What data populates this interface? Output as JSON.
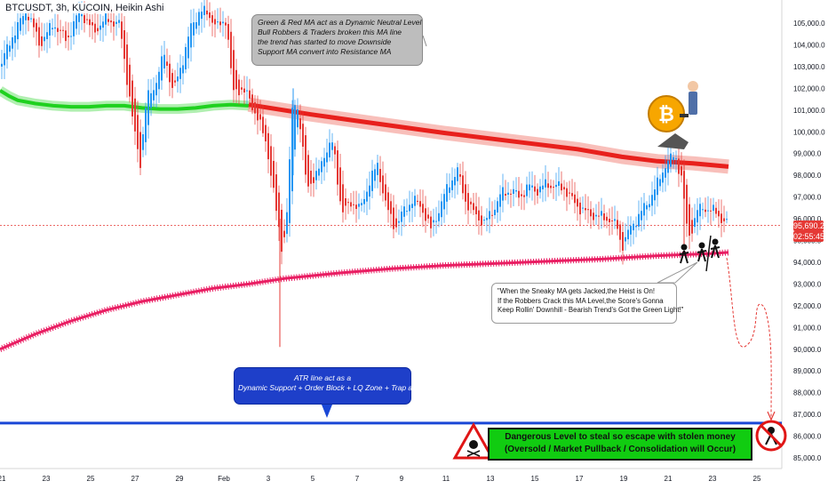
{
  "ticker": "BTCUSDT, 3h, KUCOIN, Heikin Ashi",
  "chart_data": {
    "type": "line",
    "ylim": [
      84300,
      106300
    ],
    "y_ticks": [
      105000,
      104000,
      103000,
      102000,
      101000,
      100000,
      99000,
      98000,
      97000,
      96000,
      95000,
      94000,
      93000,
      92000,
      91000,
      90000,
      89000,
      88000,
      87000,
      86000,
      85000
    ],
    "y_tick_labels": [
      "105,000.0",
      "104,000.0",
      "103,000.0",
      "102,000.0",
      "101,000.0",
      "100,000.0",
      "99,000.0",
      "98,000.0",
      "97,000.0",
      "96,000.0",
      "95,000.0",
      "94,000.0",
      "93,000.0",
      "92,000.0",
      "91,000.0",
      "90,000.0",
      "89,000.0",
      "88,000.0",
      "87,000.0",
      "86,000.0",
      "85,000.0"
    ],
    "x_tick_labels": [
      "21",
      "23",
      "25",
      "27",
      "29",
      "Feb",
      "3",
      "5",
      "7",
      "9",
      "11",
      "13",
      "15",
      "17",
      "19",
      "21",
      "23",
      "25"
    ],
    "current_price": 95690.2,
    "current_price_label": "95,690.2",
    "countdown": "02:55:45",
    "series": [
      {
        "values": [
          [
            0,
            101900
          ],
          [
            10,
            101650
          ],
          [
            20,
            101450
          ],
          [
            40,
            101300
          ],
          [
            60,
            101200
          ],
          [
            80,
            101150
          ],
          [
            100,
            101150
          ],
          [
            120,
            101200
          ],
          [
            140,
            101200
          ],
          [
            160,
            101100
          ],
          [
            180,
            101050
          ],
          [
            200,
            101050
          ],
          [
            220,
            101100
          ],
          [
            240,
            101200
          ],
          [
            260,
            101250
          ],
          [
            280,
            101200
          ]
        ]
      },
      {
        "values": [
          [
            280,
            101250
          ],
          [
            350,
            100800
          ],
          [
            420,
            100400
          ],
          [
            500,
            99950
          ],
          [
            580,
            99550
          ],
          [
            650,
            99200
          ],
          [
            700,
            98850
          ],
          [
            740,
            98650
          ],
          [
            780,
            98550
          ],
          [
            820,
            98400
          ]
        ]
      },
      {
        "values": [
          [
            0,
            90000
          ],
          [
            40,
            90700
          ],
          [
            80,
            91300
          ],
          [
            120,
            91800
          ],
          [
            160,
            92200
          ],
          [
            200,
            92500
          ],
          [
            240,
            92800
          ],
          [
            280,
            93000
          ],
          [
            320,
            93250
          ],
          [
            380,
            93500
          ],
          [
            440,
            93700
          ],
          [
            500,
            93850
          ],
          [
            560,
            93950
          ],
          [
            620,
            94050
          ],
          [
            680,
            94150
          ],
          [
            740,
            94300
          ],
          [
            800,
            94400
          ],
          [
            820,
            94450
          ]
        ]
      },
      {
        "values": [
          [
            0,
            86600
          ],
          [
            880,
            86600
          ]
        ]
      }
    ],
    "price_path": [
      [
        0,
        103000
      ],
      [
        15,
        104500
      ],
      [
        30,
        105600
      ],
      [
        45,
        104000
      ],
      [
        60,
        105000
      ],
      [
        75,
        104200
      ],
      [
        90,
        105600
      ],
      [
        105,
        104600
      ],
      [
        120,
        105200
      ],
      [
        135,
        104900
      ],
      [
        150,
        100300
      ],
      [
        158,
        98600
      ],
      [
        165,
        101500
      ],
      [
        175,
        102200
      ],
      [
        185,
        103600
      ],
      [
        195,
        101800
      ],
      [
        205,
        103200
      ],
      [
        215,
        104800
      ],
      [
        225,
        105600
      ],
      [
        235,
        105400
      ],
      [
        245,
        104800
      ],
      [
        255,
        105200
      ],
      [
        262,
        101800
      ],
      [
        270,
        102000
      ],
      [
        280,
        101600
      ],
      [
        290,
        100600
      ],
      [
        300,
        99500
      ],
      [
        310,
        96600
      ],
      [
        318,
        94500
      ],
      [
        323,
        96200
      ],
      [
        330,
        101800
      ],
      [
        336,
        100900
      ],
      [
        345,
        97600
      ],
      [
        355,
        97800
      ],
      [
        365,
        99000
      ],
      [
        375,
        99500
      ],
      [
        385,
        96200
      ],
      [
        395,
        96800
      ],
      [
        405,
        96400
      ],
      [
        415,
        97600
      ],
      [
        425,
        98500
      ],
      [
        435,
        96500
      ],
      [
        445,
        95600
      ],
      [
        455,
        96400
      ],
      [
        465,
        96900
      ],
      [
        475,
        96500
      ],
      [
        485,
        95500
      ],
      [
        495,
        96500
      ],
      [
        505,
        97600
      ],
      [
        515,
        98200
      ],
      [
        525,
        96700
      ],
      [
        535,
        96200
      ],
      [
        545,
        95800
      ],
      [
        555,
        96400
      ],
      [
        565,
        97200
      ],
      [
        575,
        97300
      ],
      [
        585,
        97000
      ],
      [
        595,
        97500
      ],
      [
        605,
        97300
      ],
      [
        615,
        97600
      ],
      [
        625,
        97500
      ],
      [
        635,
        97400
      ],
      [
        645,
        96800
      ],
      [
        655,
        96400
      ],
      [
        665,
        96200
      ],
      [
        675,
        96100
      ],
      [
        685,
        96000
      ],
      [
        695,
        95600
      ],
      [
        700,
        94700
      ],
      [
        710,
        95600
      ],
      [
        720,
        96200
      ],
      [
        730,
        96800
      ],
      [
        740,
        97600
      ],
      [
        750,
        98600
      ],
      [
        760,
        98900
      ],
      [
        768,
        97800
      ],
      [
        772,
        95800
      ],
      [
        776,
        95200
      ],
      [
        785,
        96400
      ],
      [
        795,
        96500
      ],
      [
        805,
        96300
      ],
      [
        815,
        95900
      ],
      [
        820,
        95690
      ]
    ]
  },
  "annotations": {
    "gray_note": {
      "line1": "Green & Red MA act as a Dynamic Neutral Level",
      "line2": "Bull Robbers & Traders broken this MA line",
      "line3": "the trend has started to move Downside",
      "line4": "Support MA convert into Resistance MA"
    },
    "white_note": {
      "line1": "\"When the Sneaky MA gets Jacked,the Heist is On!",
      "line2": "If the Robbers Crack this MA Level,the Score's Gonna",
      "line3": "Keep Rollin' Downhill - Bearish Trend's Got the Green Light!\""
    },
    "blue_note": {
      "line1": "ATR line act as a",
      "line2": "Dynamic Support + Order Block + LQ Zone + Trap area"
    },
    "green_note": {
      "line1": "Dangerous Level to steal so escape with stolen money",
      "line2": "(Oversold / Market Pullback / Consolidation will Occur)"
    }
  },
  "colors": {
    "bull": "#2196f3",
    "bear": "#e53935",
    "green_ma": "#1fd11f",
    "red_ma": "#e8201c",
    "pink_ma": "#e91e63",
    "atr_line": "#1a47d6",
    "axis_text": "#131722"
  },
  "icons": [
    "bitcoin-coin-icon",
    "robber-figure-icon",
    "danger-skull-icon"
  ]
}
